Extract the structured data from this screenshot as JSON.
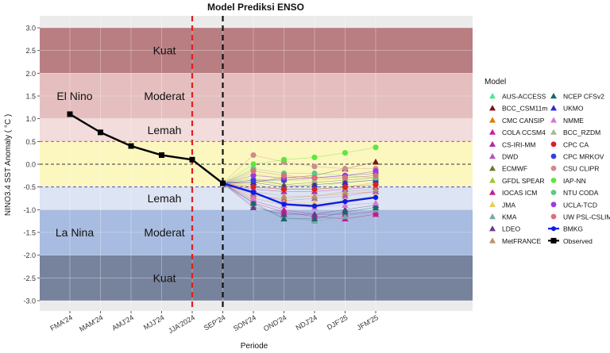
{
  "chart_data": {
    "type": "line",
    "title": "Model Prediksi ENSO",
    "xlabel": "Periode",
    "ylabel": "NINO3.4 SST Anomaly ( °C )",
    "ylim": [
      -3.0,
      3.0
    ],
    "y_ticks": [
      "3.0",
      "2.5",
      "2.0",
      "1.5",
      "1.0",
      "0.5",
      "0.0",
      "-0.5",
      "-1.0",
      "-1.5",
      "-2.0",
      "-2.5",
      "-3.0"
    ],
    "categories": [
      "FMA'24",
      "MAM'24",
      "AMJ'24",
      "MJJ'24",
      "JJA'2024",
      "SEP'24",
      "SON'24",
      "OND'24",
      "NDJ'24",
      "DJF'25",
      "JFM'25"
    ],
    "grid": true,
    "legend_title": "Model",
    "legend_position": "right",
    "bands": [
      {
        "label": "Kuat",
        "from": 2.0,
        "to": 3.0,
        "color": "#b87e82"
      },
      {
        "label": "Moderat",
        "from": 1.0,
        "to": 2.0,
        "color": "#e5bfc0"
      },
      {
        "label": "Lemah",
        "from": 0.5,
        "to": 1.0,
        "color": "#f2dcdc"
      },
      {
        "label": "",
        "from": -0.5,
        "to": 0.5,
        "color": "#fbf7bf"
      },
      {
        "label": "Lemah",
        "from": -1.0,
        "to": -0.5,
        "color": "#dde4f3"
      },
      {
        "label": "Moderat",
        "from": -2.0,
        "to": -1.0,
        "color": "#a8bbe0"
      },
      {
        "label": "Kuat",
        "from": -3.0,
        "to": -2.0,
        "color": "#77839d"
      }
    ],
    "phase_labels": [
      {
        "text": "El Nino",
        "y": 1.5
      },
      {
        "text": "La Nina",
        "y": -1.5
      }
    ],
    "reference_lines": [
      {
        "y": 0.5,
        "color": "#e03030"
      },
      {
        "y": 0.0,
        "color": "#333333"
      },
      {
        "y": -0.5,
        "color": "#3030d0"
      }
    ],
    "vertical_lines": [
      {
        "at": "JJA'2024",
        "color": "#e02020"
      },
      {
        "at": "SEP'24",
        "color": "#111111"
      }
    ],
    "observed": {
      "name": "Observed",
      "color": "#000000",
      "x": [
        "FMA'24",
        "MAM'24",
        "AMJ'24",
        "MJJ'24",
        "JJA'2024",
        "SEP'24"
      ],
      "values": [
        1.1,
        0.7,
        0.4,
        0.2,
        0.1,
        -0.42
      ]
    },
    "bmkg": {
      "name": "BMKG",
      "color": "#0a1ee6",
      "x": [
        "SEP'24",
        "SON'24",
        "OND'24",
        "NDJ'24",
        "DJF'25",
        "JFM'25"
      ],
      "values": [
        -0.42,
        -0.62,
        -0.88,
        -0.92,
        -0.82,
        -0.73
      ]
    },
    "forecast_x": [
      "SON'24",
      "OND'24",
      "NDJ'24",
      "DJF'25",
      "JFM'25"
    ],
    "models": [
      {
        "name": "AUS-ACCESS",
        "shape": "triangle",
        "color": "#4ee88c",
        "values": [
          -0.3,
          -0.45,
          -0.5,
          -0.4,
          -0.35
        ]
      },
      {
        "name": "BCC_CSM11m",
        "shape": "triangle",
        "color": "#7a1414",
        "values": [
          -0.4,
          -0.3,
          -0.25,
          -0.1,
          0.05
        ]
      },
      {
        "name": "CMC CANSIP",
        "shape": "triangle",
        "color": "#e07b00",
        "values": [
          -0.7,
          -0.75,
          -0.7,
          -0.65,
          -0.6
        ]
      },
      {
        "name": "COLA CCSM4",
        "shape": "triangle",
        "color": "#cc1f9a",
        "values": [
          -0.8,
          -1.0,
          -1.1,
          -1.1,
          -1.05
        ]
      },
      {
        "name": "CS-IRI-MM",
        "shape": "triangle",
        "color": "#b42aa8",
        "values": [
          -0.55,
          -0.6,
          -0.6,
          -0.55,
          -0.5
        ]
      },
      {
        "name": "DWD",
        "shape": "triangle",
        "color": "#b05ab8",
        "values": [
          -0.65,
          -0.8,
          -0.75,
          -0.7,
          -0.6
        ]
      },
      {
        "name": "ECMWF",
        "shape": "triangle",
        "color": "#6b7a28",
        "values": [
          -0.35,
          -0.45,
          -0.4,
          -0.35,
          -0.3
        ]
      },
      {
        "name": "GFDL SPEAR",
        "shape": "triangle",
        "color": "#a0c828",
        "values": [
          -0.45,
          -0.55,
          -0.55,
          -0.5,
          -0.4
        ]
      },
      {
        "name": "IOCAS ICM",
        "shape": "triangle",
        "color": "#c8188c",
        "values": [
          -0.85,
          -1.05,
          -1.15,
          -1.2,
          -1.1
        ]
      },
      {
        "name": "JMA",
        "shape": "triangle",
        "color": "#e8cf50",
        "values": [
          -0.75,
          -0.85,
          -0.85,
          -0.8,
          -0.7
        ]
      },
      {
        "name": "KMA",
        "shape": "triangle",
        "color": "#78a8a8",
        "values": [
          -0.9,
          -1.15,
          -1.25,
          -1.15,
          -1.0
        ]
      },
      {
        "name": "LDEO",
        "shape": "triangle",
        "color": "#6a3a8a",
        "values": [
          -0.95,
          -1.1,
          -1.1,
          -1.0,
          -0.9
        ]
      },
      {
        "name": "MetFRANCE",
        "shape": "triangle",
        "color": "#b8946a",
        "values": [
          -0.6,
          -0.7,
          -0.7,
          -0.6,
          -0.55
        ]
      },
      {
        "name": "NCEP CFSv2",
        "shape": "triangle",
        "color": "#146a6a",
        "values": [
          -0.85,
          -1.2,
          -1.2,
          -1.05,
          -0.95
        ]
      },
      {
        "name": "UKMO",
        "shape": "triangle",
        "color": "#2a2ad8",
        "values": [
          -0.4,
          -0.5,
          -0.45,
          -0.4,
          -0.35
        ]
      },
      {
        "name": "NMME",
        "shape": "triangle",
        "color": "#d07ad8",
        "values": [
          -0.75,
          -0.9,
          -0.95,
          -0.9,
          -0.85
        ]
      },
      {
        "name": "BCC_RZDM",
        "shape": "triangle",
        "color": "#a8b890",
        "values": [
          -0.2,
          -0.35,
          -0.35,
          -0.3,
          -0.25
        ]
      },
      {
        "name": "CPC CA",
        "shape": "circle",
        "color": "#d82028",
        "values": [
          -0.5,
          -0.55,
          -0.55,
          -0.5,
          -0.45
        ]
      },
      {
        "name": "CPC MRKOV",
        "shape": "circle",
        "color": "#3a3ae0",
        "values": [
          -0.35,
          -0.35,
          -0.3,
          -0.25,
          -0.2
        ]
      },
      {
        "name": "CSU CLIPR",
        "shape": "circle",
        "color": "#d08a90",
        "values": [
          0.2,
          0.05,
          -0.05,
          -0.1,
          -0.1
        ]
      },
      {
        "name": "IAP-NN",
        "shape": "circle",
        "color": "#5ae83a",
        "values": [
          0.0,
          0.1,
          0.15,
          0.25,
          0.37
        ]
      },
      {
        "name": "NTU CODA",
        "shape": "circle",
        "color": "#5aca8a",
        "values": [
          -0.1,
          -0.2,
          -0.2,
          -0.25,
          -0.3
        ]
      },
      {
        "name": "UCLA-TCD",
        "shape": "circle",
        "color": "#9a3ae0",
        "values": [
          -0.25,
          -0.3,
          -0.3,
          -0.25,
          -0.15
        ]
      },
      {
        "name": "UW PSL-CSLIM",
        "shape": "circle",
        "color": "#d8707a",
        "values": [
          -0.15,
          -0.25,
          -0.3,
          -0.3,
          -0.25
        ]
      }
    ],
    "legend_extra": [
      {
        "name": "BMKG",
        "shape": "line-dot",
        "color": "#0a1ee6"
      },
      {
        "name": "Observed",
        "shape": "line-square",
        "color": "#000000"
      }
    ]
  }
}
